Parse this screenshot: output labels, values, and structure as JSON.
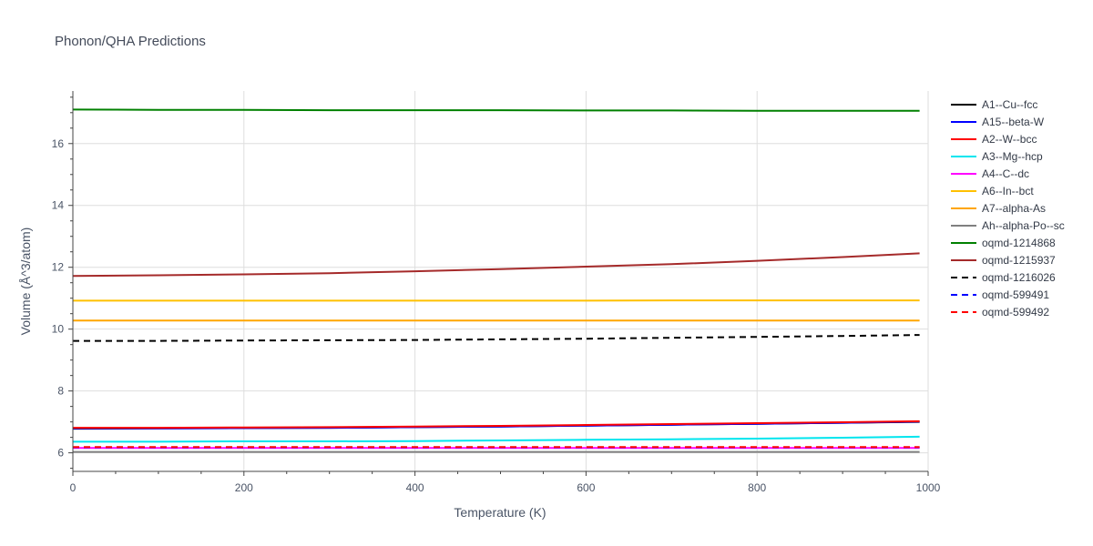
{
  "chart_data": {
    "type": "line",
    "title": "Phonon/QHA Predictions",
    "xlabel": "Temperature (K)",
    "ylabel": "Volume (Å^3/atom)",
    "xlim": [
      0,
      1000
    ],
    "ylim": [
      5.4,
      17.7
    ],
    "xticks": [
      0,
      200,
      400,
      600,
      800,
      1000
    ],
    "yticks": [
      6,
      8,
      10,
      12,
      14,
      16
    ],
    "grid": true,
    "legend_position": "right",
    "x": [
      0,
      100,
      200,
      300,
      400,
      500,
      600,
      700,
      800,
      900,
      990
    ],
    "series": [
      {
        "name": "A1--Cu--fcc",
        "color": "#000000",
        "dash": "solid",
        "values": [
          6.78,
          6.79,
          6.8,
          6.81,
          6.83,
          6.85,
          6.88,
          6.91,
          6.94,
          6.97,
          7.0
        ]
      },
      {
        "name": "A15--beta-W",
        "color": "#0000ff",
        "dash": "solid",
        "values": [
          6.79,
          6.79,
          6.8,
          6.81,
          6.83,
          6.85,
          6.88,
          6.91,
          6.94,
          6.97,
          7.01
        ]
      },
      {
        "name": "A2--W--bcc",
        "color": "#ff0000",
        "dash": "solid",
        "values": [
          6.81,
          6.81,
          6.82,
          6.83,
          6.85,
          6.87,
          6.9,
          6.93,
          6.96,
          6.99,
          7.02
        ]
      },
      {
        "name": "A3--Mg--hcp",
        "color": "#00e5ee",
        "dash": "solid",
        "values": [
          6.36,
          6.36,
          6.37,
          6.37,
          6.38,
          6.4,
          6.42,
          6.44,
          6.46,
          6.49,
          6.52
        ]
      },
      {
        "name": "A4--C--dc",
        "color": "#ff00ff",
        "dash": "solid",
        "values": [
          6.16,
          6.16,
          6.16,
          6.16,
          6.16,
          6.16,
          6.16,
          6.16,
          6.16,
          6.16,
          6.16
        ]
      },
      {
        "name": "A6--In--bct",
        "color": "#ffc000",
        "dash": "solid",
        "values": [
          10.92,
          10.92,
          10.92,
          10.92,
          10.92,
          10.92,
          10.92,
          10.93,
          10.93,
          10.93,
          10.93
        ]
      },
      {
        "name": "A7--alpha-As",
        "color": "#ffa500",
        "dash": "solid",
        "values": [
          10.28,
          10.28,
          10.28,
          10.28,
          10.28,
          10.28,
          10.28,
          10.28,
          10.28,
          10.28,
          10.28
        ]
      },
      {
        "name": "Ah--alpha-Po--sc",
        "color": "#808080",
        "dash": "solid",
        "values": [
          6.03,
          6.03,
          6.03,
          6.03,
          6.03,
          6.03,
          6.03,
          6.03,
          6.03,
          6.03,
          6.03
        ]
      },
      {
        "name": "oqmd-1214868",
        "color": "#008000",
        "dash": "solid",
        "values": [
          17.1,
          17.09,
          17.09,
          17.08,
          17.08,
          17.08,
          17.07,
          17.07,
          17.06,
          17.06,
          17.06
        ]
      },
      {
        "name": "oqmd-1215937",
        "color": "#a52a2a",
        "dash": "solid",
        "values": [
          11.72,
          11.74,
          11.77,
          11.81,
          11.87,
          11.94,
          12.02,
          12.1,
          12.21,
          12.33,
          12.45
        ]
      },
      {
        "name": "oqmd-1216026",
        "color": "#000000",
        "dash": "dash",
        "values": [
          9.62,
          9.62,
          9.63,
          9.64,
          9.65,
          9.67,
          9.69,
          9.72,
          9.75,
          9.78,
          9.81
        ]
      },
      {
        "name": "oqmd-599491",
        "color": "#0000ff",
        "dash": "dash",
        "values": [
          6.18,
          6.18,
          6.18,
          6.18,
          6.18,
          6.18,
          6.18,
          6.18,
          6.18,
          6.18,
          6.18
        ]
      },
      {
        "name": "oqmd-599492",
        "color": "#ff0000",
        "dash": "dash",
        "values": [
          6.19,
          6.19,
          6.19,
          6.19,
          6.19,
          6.19,
          6.19,
          6.19,
          6.19,
          6.19,
          6.19
        ]
      }
    ]
  }
}
